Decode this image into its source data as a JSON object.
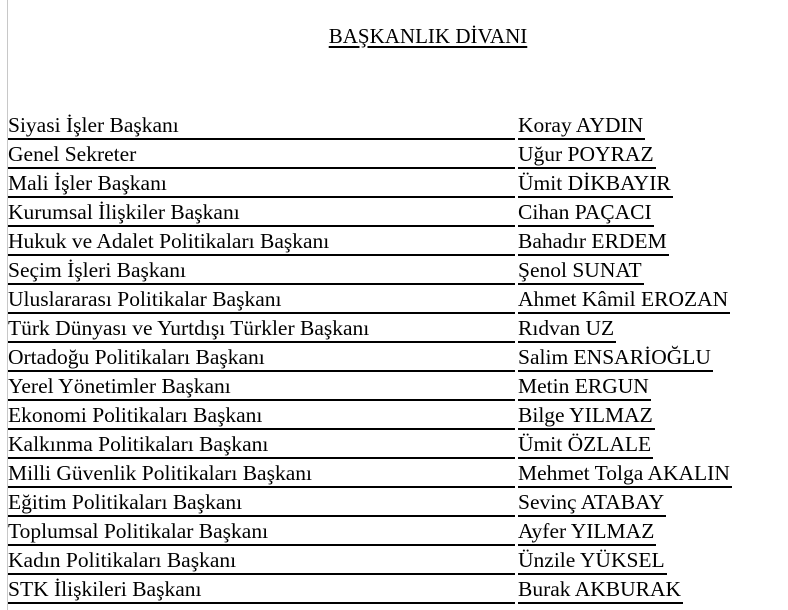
{
  "title": "BAŞKANLIK DİVANI",
  "members": [
    {
      "role": "Siyasi İşler Başkanı",
      "name": "Koray AYDIN"
    },
    {
      "role": "Genel Sekreter",
      "name": "Uğur POYRAZ"
    },
    {
      "role": "Mali İşler Başkanı",
      "name": "Ümit DİKBAYIR"
    },
    {
      "role": "Kurumsal İlişkiler Başkanı",
      "name": "Cihan PAÇACI"
    },
    {
      "role": "Hukuk ve Adalet Politikaları Başkanı",
      "name": "Bahadır ERDEM"
    },
    {
      "role": "Seçim İşleri Başkanı",
      "name": "Şenol SUNAT"
    },
    {
      "role": "Uluslararası Politikalar Başkanı",
      "name": "Ahmet Kâmil EROZAN"
    },
    {
      "role": "Türk Dünyası ve Yurtdışı Türkler Başkanı",
      "name": "Rıdvan UZ"
    },
    {
      "role": "Ortadoğu Politikaları Başkanı",
      "name": "Salim ENSARİOĞLU"
    },
    {
      "role": "Yerel Yönetimler Başkanı",
      "name": "Metin ERGUN"
    },
    {
      "role": "Ekonomi Politikaları Başkanı",
      "name": "Bilge YILMAZ"
    },
    {
      "role": "Kalkınma Politikaları Başkanı",
      "name": "Ümit ÖZLALE"
    },
    {
      "role": "Milli Güvenlik Politikaları Başkanı",
      "name": "Mehmet Tolga AKALIN"
    },
    {
      "role": "Eğitim Politikaları Başkanı",
      "name": "Sevinç ATABAY"
    },
    {
      "role": "Toplumsal Politikalar Başkanı",
      "name": "Ayfer YILMAZ"
    },
    {
      "role": "Kadın Politikaları Başkanı",
      "name": "Ünzile YÜKSEL"
    },
    {
      "role": "STK İlişkileri Başkanı",
      "name": "Burak AKBURAK"
    }
  ]
}
